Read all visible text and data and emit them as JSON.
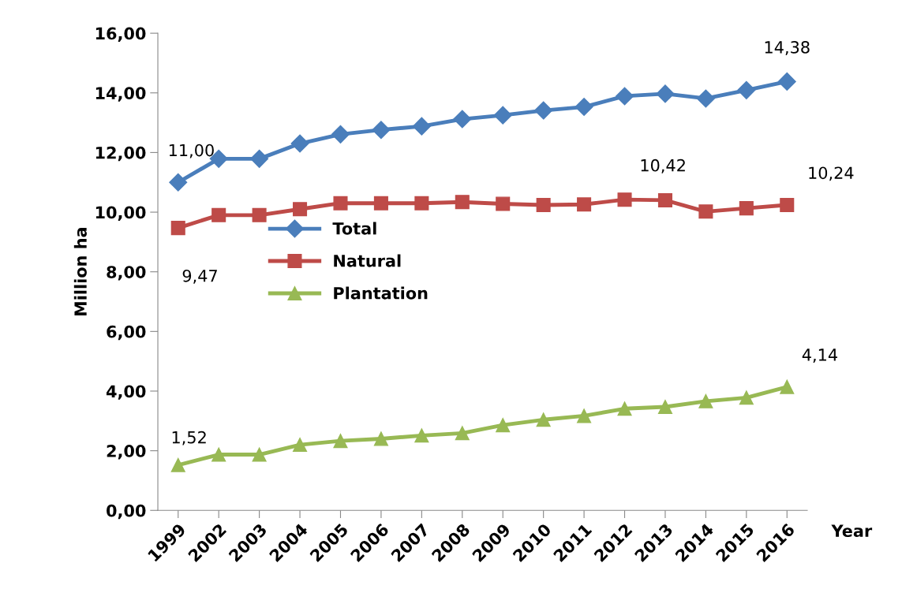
{
  "chart_data": {
    "type": "line",
    "xlabel": "Year",
    "ylabel": "Million ha",
    "categories": [
      "1999",
      "2002",
      "2003",
      "2004",
      "2005",
      "2006",
      "2007",
      "2008",
      "2009",
      "2010",
      "2011",
      "2012",
      "2013",
      "2014",
      "2015",
      "2016"
    ],
    "series": [
      {
        "name": "Total",
        "color": "#4a7ebb",
        "marker": "diamond",
        "values": [
          11.0,
          11.79,
          11.79,
          12.3,
          12.61,
          12.76,
          12.88,
          13.12,
          13.25,
          13.41,
          13.53,
          13.89,
          13.97,
          13.81,
          14.09,
          14.38
        ],
        "value_labels": [
          "11,00",
          null,
          null,
          null,
          null,
          null,
          null,
          null,
          null,
          null,
          null,
          null,
          null,
          null,
          null,
          "14,38"
        ]
      },
      {
        "name": "Natural",
        "color": "#be4b48",
        "marker": "square",
        "values": [
          9.47,
          9.9,
          9.9,
          10.1,
          10.3,
          10.3,
          10.3,
          10.34,
          10.28,
          10.24,
          10.26,
          10.42,
          10.4,
          10.02,
          10.13,
          10.24
        ],
        "value_labels": [
          "9,47",
          null,
          null,
          null,
          null,
          null,
          null,
          null,
          null,
          null,
          null,
          "10,42",
          null,
          null,
          null,
          "10,24"
        ]
      },
      {
        "name": "Plantation",
        "color": "#98b954",
        "marker": "triangle",
        "values": [
          1.52,
          1.87,
          1.87,
          2.2,
          2.33,
          2.4,
          2.51,
          2.59,
          2.86,
          3.04,
          3.17,
          3.41,
          3.47,
          3.66,
          3.78,
          4.14
        ],
        "value_labels": [
          "1,52",
          null,
          null,
          null,
          null,
          null,
          null,
          null,
          null,
          null,
          null,
          null,
          null,
          null,
          null,
          "4,14"
        ]
      }
    ],
    "ylim": [
      0,
      16
    ],
    "yticks": [
      {
        "value": 0,
        "label": "0,00"
      },
      {
        "value": 2,
        "label": "2,00"
      },
      {
        "value": 4,
        "label": "4,00"
      },
      {
        "value": 6,
        "label": "6,00"
      },
      {
        "value": 8,
        "label": "8,00"
      },
      {
        "value": 10,
        "label": "10,00"
      },
      {
        "value": 12,
        "label": "12,00"
      },
      {
        "value": 14,
        "label": "14,00"
      },
      {
        "value": 16,
        "label": "16,00"
      }
    ],
    "grid": false,
    "legend": "center left",
    "line_style": "solid"
  }
}
